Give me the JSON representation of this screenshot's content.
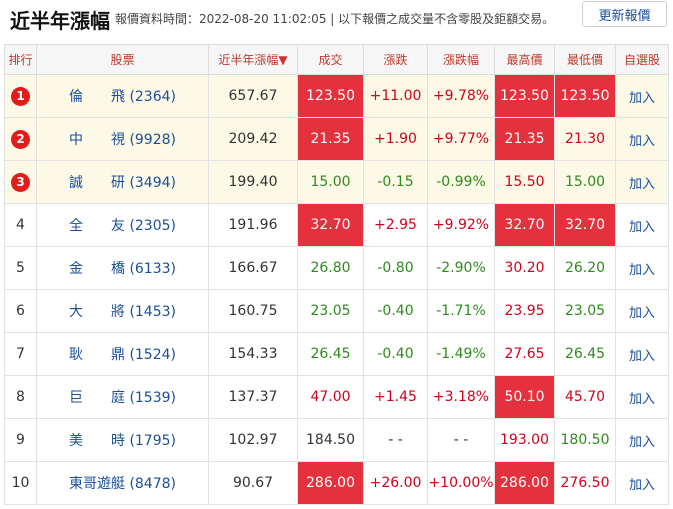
{
  "header": {
    "title": "近半年漲幅",
    "note": "報價資料時間：2022-08-20 11:02:05 | 以下報價之成交量不含零股及鉅額交易。",
    "refresh_label": "更新報價"
  },
  "columns": {
    "rank": "排行",
    "stock": "股票",
    "return": "近半年漲幅▼",
    "price": "成交",
    "change": "漲跌",
    "change_pct": "漲跌幅",
    "high": "最高價",
    "low": "最低價",
    "watch": "自選股"
  },
  "rows": [
    {
      "rank": "1",
      "name": "倫飛",
      "code": "(2364)",
      "ret": "657.67",
      "price": "123.50",
      "change": "+11.00",
      "pct": "+9.78%",
      "high": "123.50",
      "low": "123.50",
      "watch": "加入"
    },
    {
      "rank": "2",
      "name": "中視",
      "code": "(9928)",
      "ret": "209.42",
      "price": "21.35",
      "change": "+1.90",
      "pct": "+9.77%",
      "high": "21.35",
      "low": "21.30",
      "watch": "加入"
    },
    {
      "rank": "3",
      "name": "誠研",
      "code": "(3494)",
      "ret": "199.40",
      "price": "15.00",
      "change": "-0.15",
      "pct": "-0.99%",
      "high": "15.50",
      "low": "15.00",
      "watch": "加入"
    },
    {
      "rank": "4",
      "name": "全友",
      "code": "(2305)",
      "ret": "191.96",
      "price": "32.70",
      "change": "+2.95",
      "pct": "+9.92%",
      "high": "32.70",
      "low": "32.70",
      "watch": "加入"
    },
    {
      "rank": "5",
      "name": "金橋",
      "code": "(6133)",
      "ret": "166.67",
      "price": "26.80",
      "change": "-0.80",
      "pct": "-2.90%",
      "high": "30.20",
      "low": "26.20",
      "watch": "加入"
    },
    {
      "rank": "6",
      "name": "大將",
      "code": "(1453)",
      "ret": "160.75",
      "price": "23.05",
      "change": "-0.40",
      "pct": "-1.71%",
      "high": "23.95",
      "low": "23.05",
      "watch": "加入"
    },
    {
      "rank": "7",
      "name": "耿鼎",
      "code": "(1524)",
      "ret": "154.33",
      "price": "26.45",
      "change": "-0.40",
      "pct": "-1.49%",
      "high": "27.65",
      "low": "26.45",
      "watch": "加入"
    },
    {
      "rank": "8",
      "name": "巨庭",
      "code": "(1539)",
      "ret": "137.37",
      "price": "47.00",
      "change": "+1.45",
      "pct": "+3.18%",
      "high": "50.10",
      "low": "45.70",
      "watch": "加入"
    },
    {
      "rank": "9",
      "name": "美時",
      "code": "(1795)",
      "ret": "102.97",
      "price": "184.50",
      "change": "- -",
      "pct": "- -",
      "high": "193.00",
      "low": "180.50",
      "watch": "加入"
    },
    {
      "rank": "10",
      "name": "東哥遊艇",
      "code": "(8478)",
      "ret": "90.67",
      "price": "286.00",
      "change": "+26.00",
      "pct": "+10.00%",
      "high": "286.00",
      "low": "276.50",
      "watch": "加入"
    }
  ],
  "colors": {
    "limit_highlight": "#e4313d",
    "up": "#d0021b",
    "down": "#2e8b1d",
    "link": "#1a4f9a",
    "top3_bg": "#fcf9e6",
    "rank_badge": "#e21b1b"
  }
}
